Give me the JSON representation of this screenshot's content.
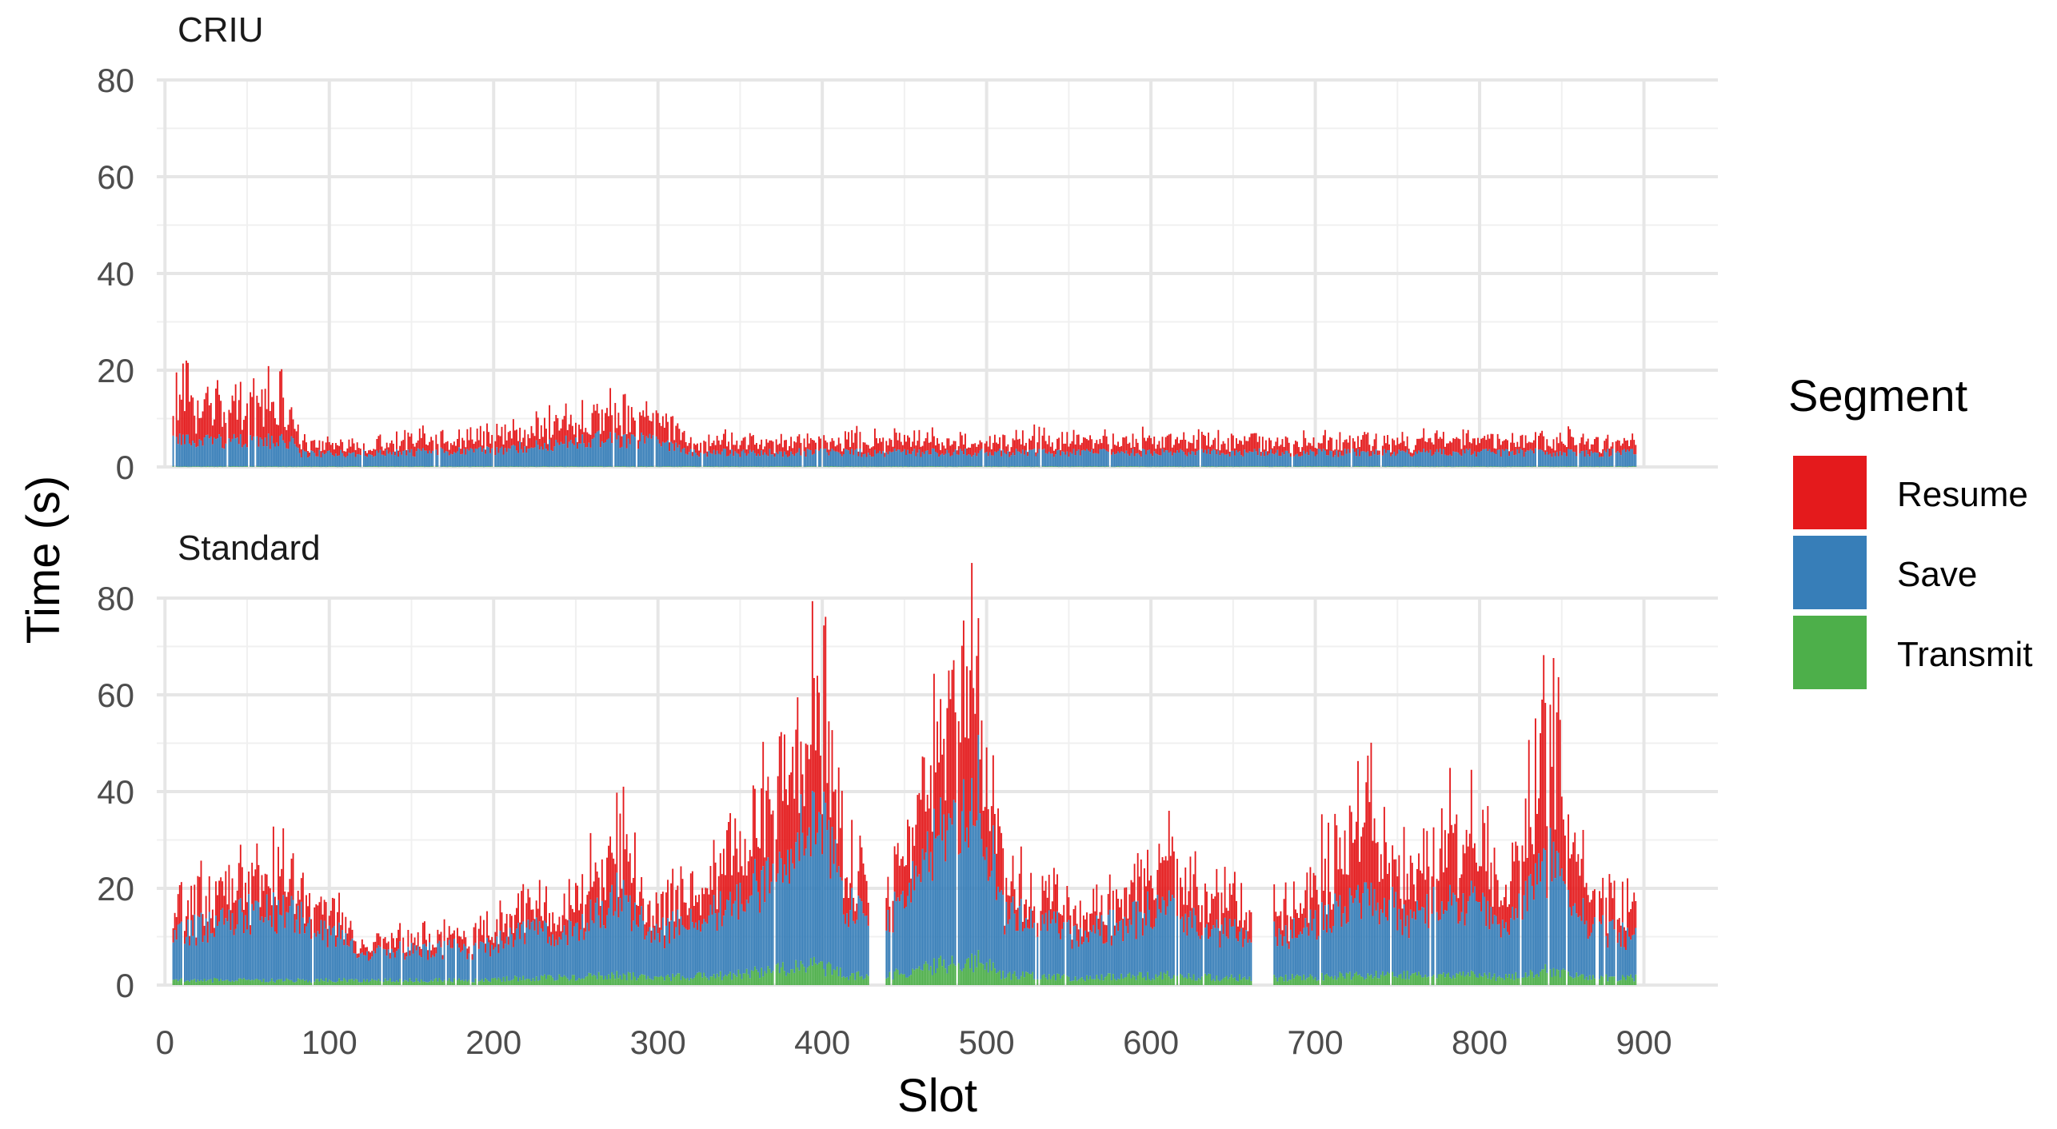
{
  "chart_data": {
    "type": "bar",
    "stacked": true,
    "xlabel": "Slot",
    "ylabel": "Time (s)",
    "x_ticks": [
      0,
      100,
      200,
      300,
      400,
      500,
      600,
      700,
      800,
      900
    ],
    "y_ticks": [
      0,
      20,
      40,
      60,
      80
    ],
    "xlim": [
      -5,
      945
    ],
    "ylim": [
      0,
      80
    ],
    "grid": true,
    "legend": {
      "title": "Segment",
      "position": "right",
      "items": [
        {
          "label": "Resume",
          "color": "#E41A1C"
        },
        {
          "label": "Save",
          "color": "#377EB8"
        },
        {
          "label": "Transmit",
          "color": "#4DAF4A"
        }
      ]
    },
    "panels": [
      {
        "title": "CRIU",
        "x_range": [
          5,
          895
        ],
        "profile_points": [
          {
            "x": 5,
            "transmit": 0.1,
            "save": 5.5,
            "resume": 8.0
          },
          {
            "x": 40,
            "transmit": 0.1,
            "save": 5.5,
            "resume": 8.5
          },
          {
            "x": 78,
            "transmit": 0.1,
            "save": 5.5,
            "resume": 8.0
          },
          {
            "x": 82,
            "transmit": 0.1,
            "save": 2.8,
            "resume": 2.0
          },
          {
            "x": 130,
            "transmit": 0.1,
            "save": 2.8,
            "resume": 2.2
          },
          {
            "x": 200,
            "transmit": 0.1,
            "save": 3.5,
            "resume": 3.0
          },
          {
            "x": 240,
            "transmit": 0.1,
            "save": 5.0,
            "resume": 4.0
          },
          {
            "x": 260,
            "transmit": 0.1,
            "save": 6.0,
            "resume": 4.8
          },
          {
            "x": 300,
            "transmit": 0.1,
            "save": 5.5,
            "resume": 4.5
          },
          {
            "x": 318,
            "transmit": 0.1,
            "save": 3.0,
            "resume": 2.5
          },
          {
            "x": 450,
            "transmit": 0.1,
            "save": 3.0,
            "resume": 2.5
          },
          {
            "x": 895,
            "transmit": 0.1,
            "save": 3.0,
            "resume": 2.5
          }
        ]
      },
      {
        "title": "Standard",
        "x_range": [
          5,
          895
        ],
        "profile_points": [
          {
            "x": 5,
            "transmit": 1.0,
            "save": 10,
            "resume": 5
          },
          {
            "x": 60,
            "transmit": 1.0,
            "save": 15,
            "resume": 7
          },
          {
            "x": 85,
            "transmit": 1.0,
            "save": 14,
            "resume": 7
          },
          {
            "x": 120,
            "transmit": 1.0,
            "save": 6,
            "resume": 2
          },
          {
            "x": 200,
            "transmit": 1.0,
            "save": 7,
            "resume": 3
          },
          {
            "x": 215,
            "transmit": 1.5,
            "save": 11,
            "resume": 5
          },
          {
            "x": 240,
            "transmit": 1.5,
            "save": 9,
            "resume": 4
          },
          {
            "x": 278,
            "transmit": 2.0,
            "save": 17,
            "resume": 12
          },
          {
            "x": 295,
            "transmit": 1.5,
            "save": 9,
            "resume": 4
          },
          {
            "x": 340,
            "transmit": 2.0,
            "save": 14,
            "resume": 10
          },
          {
            "x": 370,
            "transmit": 3.0,
            "save": 20,
            "resume": 16
          },
          {
            "x": 398,
            "transmit": 4.0,
            "save": 34,
            "resume": 26
          },
          {
            "x": 415,
            "transmit": 2.0,
            "save": 15,
            "resume": 8
          },
          {
            "x": 440,
            "transmit": 2.0,
            "save": 12,
            "resume": 6
          },
          {
            "x": 470,
            "transmit": 4.0,
            "save": 26,
            "resume": 18
          },
          {
            "x": 495,
            "transmit": 5.0,
            "save": 36,
            "resume": 30
          },
          {
            "x": 510,
            "transmit": 2.0,
            "save": 14,
            "resume": 6
          },
          {
            "x": 560,
            "transmit": 1.5,
            "save": 9,
            "resume": 4
          },
          {
            "x": 610,
            "transmit": 2.0,
            "save": 15,
            "resume": 10
          },
          {
            "x": 640,
            "transmit": 1.5,
            "save": 10,
            "resume": 6
          },
          {
            "x": 680,
            "transmit": 1.5,
            "save": 9,
            "resume": 5
          },
          {
            "x": 735,
            "transmit": 2.0,
            "save": 17,
            "resume": 17
          },
          {
            "x": 760,
            "transmit": 2.0,
            "save": 12,
            "resume": 8
          },
          {
            "x": 775,
            "transmit": 2.0,
            "save": 16,
            "resume": 14
          },
          {
            "x": 800,
            "transmit": 2.0,
            "save": 15,
            "resume": 14
          },
          {
            "x": 815,
            "transmit": 1.5,
            "save": 10,
            "resume": 5
          },
          {
            "x": 842,
            "transmit": 3.0,
            "save": 24,
            "resume": 26
          },
          {
            "x": 865,
            "transmit": 1.5,
            "save": 12,
            "resume": 9
          },
          {
            "x": 895,
            "transmit": 1.5,
            "save": 8,
            "resume": 5
          }
        ],
        "gaps": [
          [
            430,
            438
          ],
          [
            662,
            674
          ]
        ]
      }
    ]
  }
}
